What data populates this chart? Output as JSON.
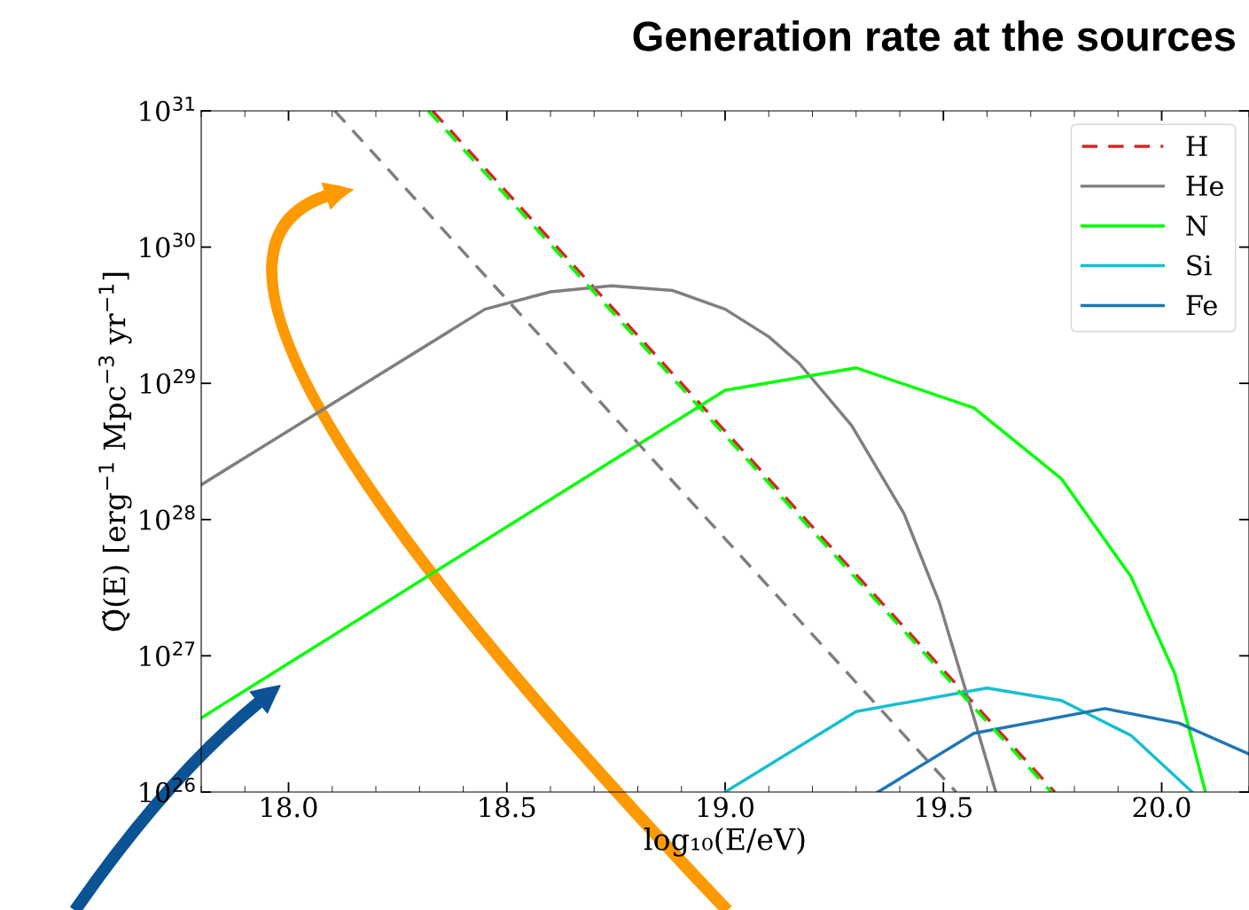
{
  "chart_data": {
    "type": "line",
    "title": "Generation rate at the sources",
    "xlabel": "log₁₀(E/eV)",
    "ylabel": "Q̃(E) [erg$^{−1}$ Mpc$^{−3}$ yr$^{−1}$]",
    "log": "y",
    "xlim": [
      17.8,
      20.2
    ],
    "xticks": [
      {
        "value": 18.0,
        "label": "18.0"
      },
      {
        "value": 18.5,
        "label": "18.5"
      },
      {
        "value": 19.0,
        "label": "19.0"
      },
      {
        "value": 19.5,
        "label": "19.5"
      },
      {
        "value": 20.0,
        "label": "20.0"
      }
    ],
    "ylim": [
      1e+26,
      1e+31
    ],
    "yticks": [
      {
        "value": 1e+26,
        "label": "10$^{26}$"
      },
      {
        "value": 1e+27,
        "label": "10$^{27}$"
      },
      {
        "value": 1e+28,
        "label": "10$^{28}$"
      },
      {
        "value": 1e+29,
        "label": "10$^{29}$"
      },
      {
        "value": 1e+30,
        "label": "10$^{30}$"
      },
      {
        "value": 1e+31,
        "label": "10$^{31}$"
      }
    ],
    "grid": false,
    "legend": "top right",
    "marker": "none",
    "series": [
      {
        "name": "H",
        "color": "#d62728",
        "line_style": "dashed",
        "x": [
          18.33,
          19.755
        ],
        "values": [
          1e+31,
          1e+26
        ]
      },
      {
        "name": "He",
        "color": "#7f7f7f",
        "line_style": "solid",
        "x": [
          17.8,
          18.45,
          18.6,
          18.74,
          18.88,
          19.0,
          19.1,
          19.17,
          19.29,
          19.41,
          19.49,
          19.57,
          19.62
        ],
        "values": [
          1.8e+28,
          3.5e+29,
          4.7e+29,
          5.2e+29,
          4.8e+29,
          3.5e+29,
          2.2e+29,
          1.4e+29,
          4.9e+28,
          1.1e+28,
          2.5e+27,
          3.5e+26,
          1e+26
        ]
      },
      {
        "name": "N",
        "color": "#00ff00",
        "line_style": "solid",
        "x": [
          17.8,
          19.0,
          19.3,
          19.57,
          19.77,
          19.93,
          20.03,
          20.1
        ],
        "values": [
          3.5e+26,
          8.9e+28,
          1.3e+29,
          6.6e+28,
          2e+28,
          3.8e+27,
          7.4e+26,
          1e+26
        ]
      },
      {
        "name": "Si",
        "color": "#17becf",
        "line_style": "solid",
        "x": [
          19.0,
          19.3,
          19.6,
          19.77,
          19.93,
          20.07
        ],
        "values": [
          1e+26,
          3.9e+26,
          5.8e+26,
          4.7e+26,
          2.6e+26,
          1e+26
        ]
      },
      {
        "name": "Fe",
        "color": "#1f77b4",
        "line_style": "solid",
        "x": [
          19.35,
          19.57,
          19.87,
          20.04,
          20.2
        ],
        "values": [
          1e+26,
          2.7e+26,
          4.1e+26,
          3.2e+26,
          1.9e+26
        ]
      },
      {
        "color": "#00ff00",
        "line_style": "dashed",
        "x": [
          18.32,
          19.747
        ],
        "values": [
          1e+31,
          1e+26
        ]
      },
      {
        "color": "#7f7f7f",
        "line_style": "dashed",
        "x": [
          18.106,
          19.529
        ],
        "values": [
          1e+31,
          1e+26
        ]
      }
    ]
  }
}
